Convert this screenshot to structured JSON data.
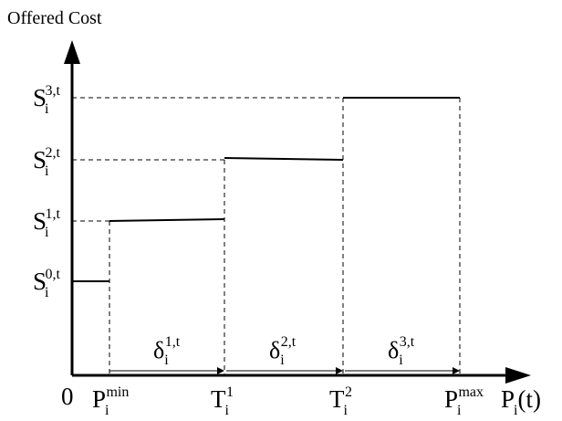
{
  "title": "Offered Cost",
  "origin": "0",
  "x_axis": {
    "label_base": "P",
    "label_sub": "i",
    "label_tail": "(t)"
  },
  "y_ticks": [
    {
      "base": "S",
      "sub": "i",
      "sup": "0,t"
    },
    {
      "base": "S",
      "sub": "i",
      "sup": "1,t"
    },
    {
      "base": "S",
      "sub": "i",
      "sup": "2,t"
    },
    {
      "base": "S",
      "sub": "i",
      "sup": "3,t"
    }
  ],
  "x_ticks": [
    {
      "base": "P",
      "sub": "i",
      "sup": "min"
    },
    {
      "base": "T",
      "sub": "i",
      "sup": "1"
    },
    {
      "base": "T",
      "sub": "i",
      "sup": "2"
    },
    {
      "base": "P",
      "sub": "i",
      "sup": "max"
    }
  ],
  "deltas": [
    {
      "base": "δ",
      "sub": "i",
      "sup": "1,t"
    },
    {
      "base": "δ",
      "sub": "i",
      "sup": "2,t"
    },
    {
      "base": "δ",
      "sub": "i",
      "sup": "3,t"
    }
  ],
  "colors": {
    "line": "#000000"
  }
}
